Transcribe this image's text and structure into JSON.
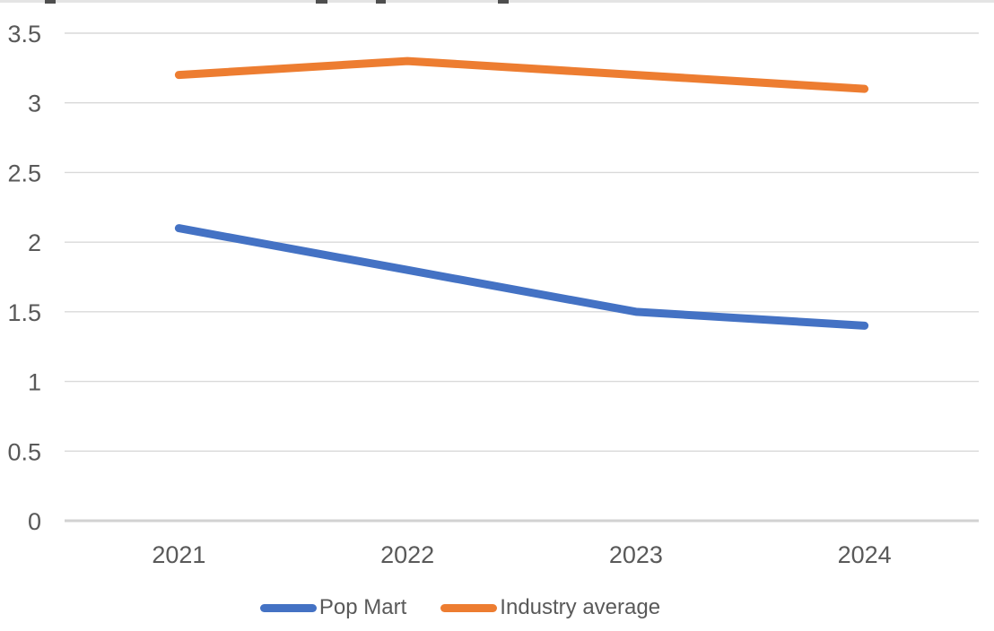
{
  "page": {
    "background": "#ffffff",
    "clipped_title": {
      "legible": false,
      "note": "a line of text is cut off at the top edge of the screenshot; only illegible fragments of glyph bottoms are visible"
    }
  },
  "chart_data": {
    "type": "line",
    "title": "",
    "xlabel": "",
    "ylabel": "",
    "categories": [
      "2021",
      "2022",
      "2023",
      "2024"
    ],
    "series": [
      {
        "name": "Pop Mart",
        "color": "#4472C4",
        "values": [
          2.1,
          1.8,
          1.5,
          1.4
        ]
      },
      {
        "name": "Industry average",
        "color": "#ED7D31",
        "values": [
          3.2,
          3.3,
          3.2,
          3.1
        ]
      }
    ],
    "ylim": [
      0,
      3.5
    ],
    "y_ticks": [
      0,
      0.5,
      1,
      1.5,
      2,
      2.5,
      3,
      3.5
    ],
    "grid": "horizontal",
    "legend_position": "bottom",
    "styles": {
      "gridline_color": "#D9D9D9",
      "axis_line_color": "#D2D2D2",
      "tick_label_color": "#595959",
      "line_width": 9
    }
  }
}
